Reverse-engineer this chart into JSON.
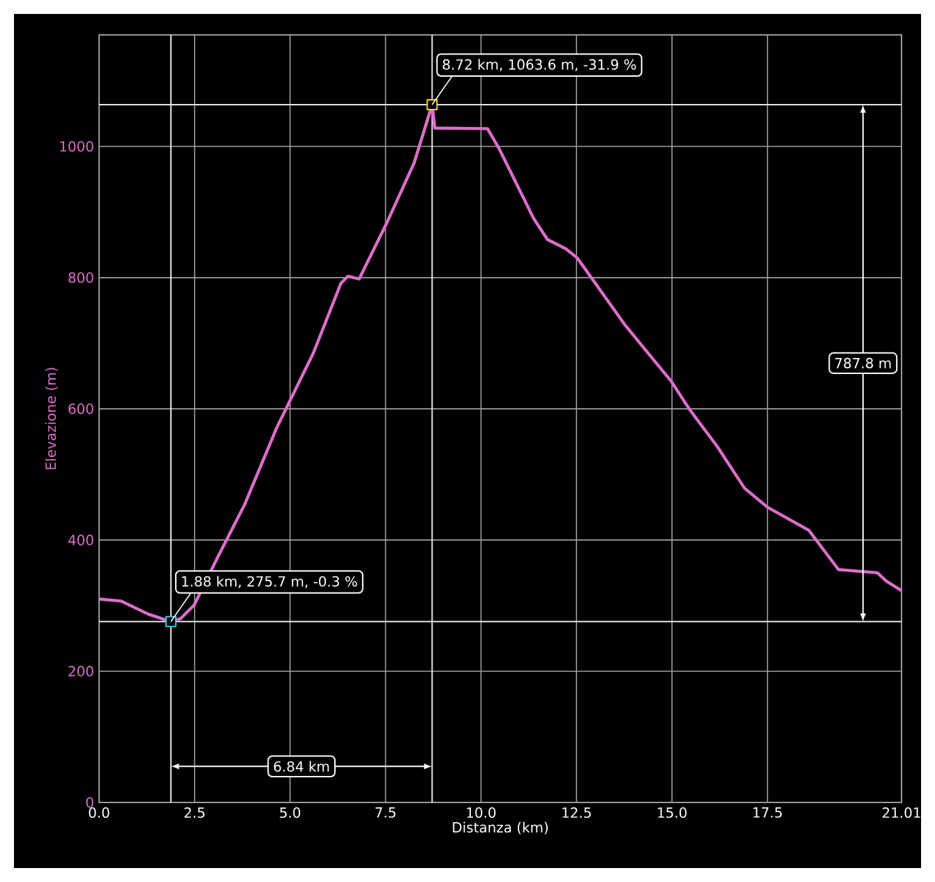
{
  "chart_data": {
    "type": "line",
    "xlabel": "Distanza (km)",
    "ylabel": "Elevazione (m)",
    "xlim": [
      0,
      21.01
    ],
    "ylim": [
      0,
      1170
    ],
    "xticks": [
      {
        "value": 0,
        "label": "0.0"
      },
      {
        "value": 2.5,
        "label": "2.5"
      },
      {
        "value": 5,
        "label": "5.0"
      },
      {
        "value": 7.5,
        "label": "7.5"
      },
      {
        "value": 10,
        "label": "10.0"
      },
      {
        "value": 12.5,
        "label": "12.5"
      },
      {
        "value": 15,
        "label": "15.0"
      },
      {
        "value": 17.5,
        "label": "17.5"
      },
      21.01
    ],
    "yticks": [
      0,
      200,
      400,
      600,
      800,
      1000
    ],
    "grid": true,
    "series": [
      {
        "color": "#dc6ec8",
        "x": [
          0,
          0.57,
          1.29,
          1.7,
          1.88,
          2.13,
          2.49,
          3.09,
          3.81,
          4.65,
          5.61,
          6.33,
          6.51,
          6.81,
          7.53,
          8.25,
          8.72,
          8.79,
          10.17,
          10.47,
          11.38,
          11.74,
          12.22,
          12.52,
          13.78,
          14.98,
          15.46,
          16.18,
          16.9,
          17.5,
          18.58,
          19.36,
          20.38,
          20.62,
          21.01
        ],
        "values": [
          310,
          307,
          287,
          279,
          275.7,
          280,
          301,
          372,
          454,
          571,
          685,
          791,
          802,
          798,
          883,
          975,
          1063.6,
          1028,
          1027,
          997,
          890,
          858,
          844,
          830,
          727,
          642,
          599,
          543,
          479,
          450,
          415,
          355,
          350,
          337,
          323
        ]
      },
      {
        "type": "scatter",
        "marker": "square",
        "x": [
          1.88,
          8.72
        ],
        "values": [
          275.7,
          1063.6
        ],
        "colors": [
          "#3cc8dc",
          "#e8dc28"
        ]
      }
    ],
    "ref_lines": [
      {
        "axis": "x",
        "value": 1.88,
        "color": "#e6e6e6"
      },
      {
        "axis": "x",
        "value": 8.72,
        "color": "#e6e6e6"
      },
      {
        "axis": "y",
        "value": 275.7,
        "color": "#e6e6e6"
      },
      {
        "axis": "y",
        "value": 1063.6,
        "color": "#e6e6e6"
      }
    ],
    "annotations": [
      {
        "text": "8.72 km, 1063.6 m, -31.9 %",
        "x": 8.72,
        "y": 1063.6
      },
      {
        "text": "1.88 km, 275.7 m, -0.3 %",
        "x": 1.88,
        "y": 275.7
      },
      "6.84 km",
      "787.8 m"
    ]
  }
}
